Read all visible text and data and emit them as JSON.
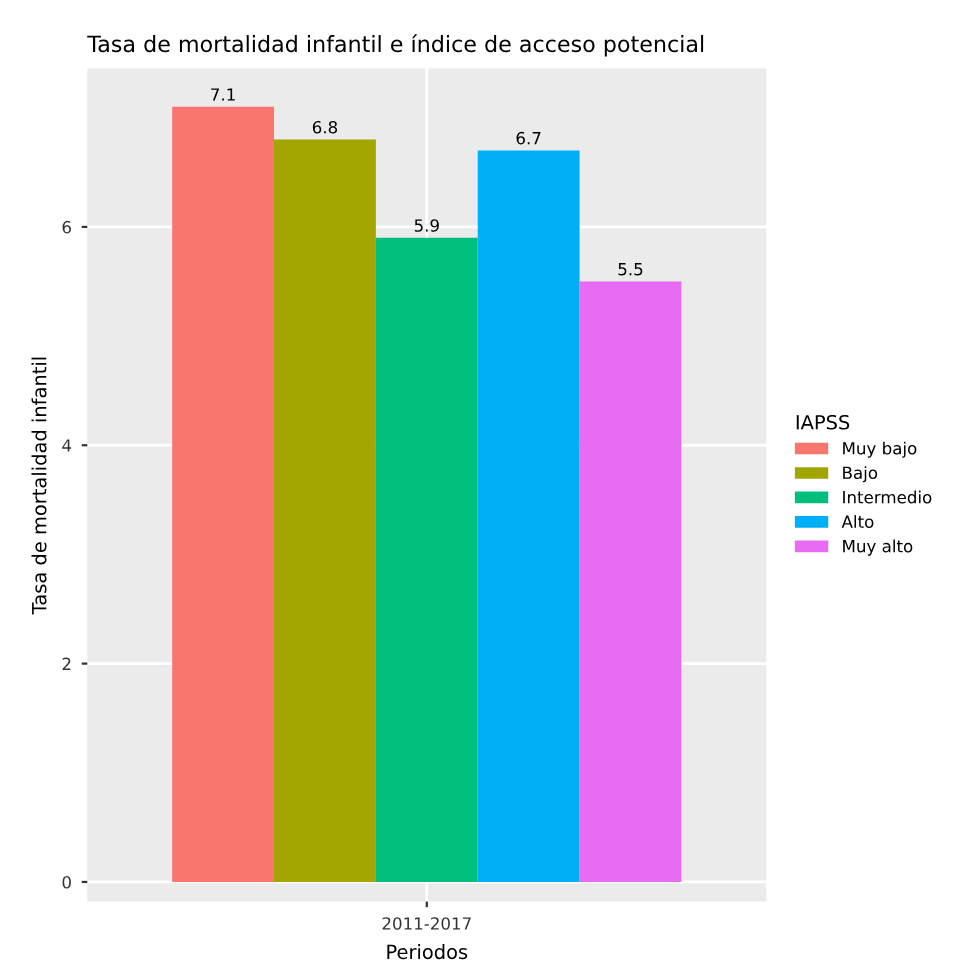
{
  "chart_data": {
    "type": "bar",
    "title": "Tasa de mortalidad infantil e índice de acceso potencial",
    "xlabel": "Periodos",
    "ylabel": "Tasa de mortalidad infantil",
    "legend_title": "IAPSS",
    "categories": [
      "2011-2017"
    ],
    "series": [
      {
        "name": "Muy bajo",
        "color": "#f8766d",
        "values": [
          7.1
        ]
      },
      {
        "name": "Bajo",
        "color": "#a3a500",
        "values": [
          6.8
        ]
      },
      {
        "name": "Intermedio",
        "color": "#00bf7d",
        "values": [
          5.9
        ]
      },
      {
        "name": "Alto",
        "color": "#00b0f6",
        "values": [
          6.7
        ]
      },
      {
        "name": "Muy alto",
        "color": "#e76bf3",
        "values": [
          5.5
        ]
      }
    ],
    "ylim": [
      -0.18,
      7.45
    ],
    "yticks": [
      0,
      2,
      4,
      6
    ],
    "grid": true,
    "legend": "right",
    "data_labels": true
  }
}
